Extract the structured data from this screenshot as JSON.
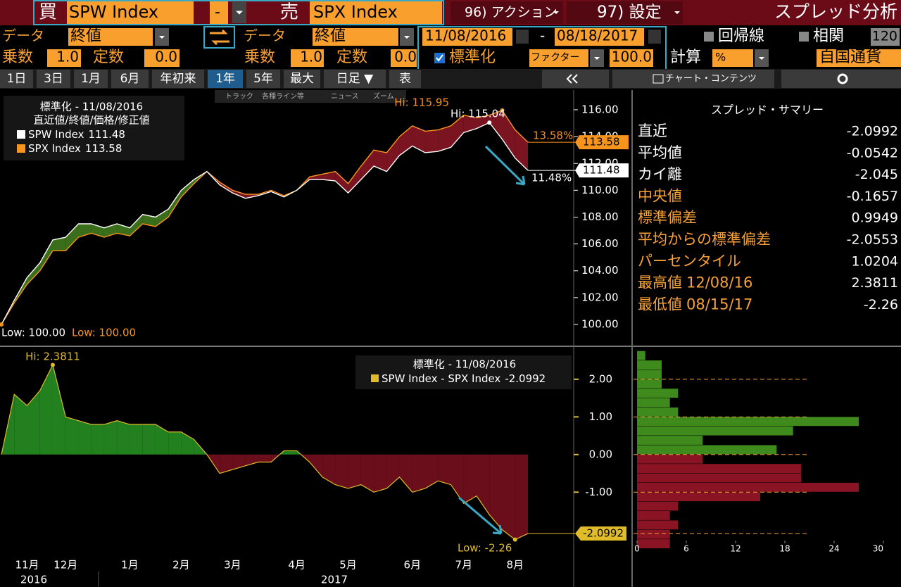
{
  "toolbar": {
    "buy_label": "買",
    "buy_ticker": "SPW Index",
    "dash": "-",
    "sell_label": "売",
    "sell_ticker": "SPX Index",
    "action_menu": "96) アクション",
    "settings_menu": "97) 設定",
    "page_title": "スプレッド分析",
    "buy_data_label": "データ",
    "buy_data_value": "終値",
    "sell_data_label": "データ",
    "sell_data_value": "終値",
    "start_date": "11/08/2016",
    "date_sep": "-",
    "end_date": "08/18/2017",
    "regression": "回帰線",
    "correlation": "相関",
    "correlation_window": "120",
    "buy_mult_label": "乗数",
    "buy_mult": "1.0",
    "buy_const_label": "定数",
    "buy_const": "0.0",
    "sell_mult_label": "乗数",
    "sell_mult": "1.0",
    "sell_const_label": "定数",
    "sell_const": "0.0",
    "normalize": "標準化",
    "factor_label": "ファクター",
    "factor": "100.0",
    "calc_label": "計算",
    "calc_value": "%",
    "currency": "自国通貨"
  },
  "range_buttons": [
    "1日",
    "3日",
    "1月",
    "6月",
    "年初来",
    "1年",
    "5年",
    "最大",
    "日足 ▼",
    "表"
  ],
  "chart_tools": [
    "トラック",
    "各種ライン等",
    "ニュース",
    "ズーム"
  ],
  "content_menu": "チャート・コンテンツ",
  "summary": {
    "title": "スプレッド・サマリー",
    "rows": [
      {
        "label": "直近",
        "value": -2.0992
      },
      {
        "label": "平均値",
        "value": -0.0542
      },
      {
        "label": "カイ離",
        "value": -2.045
      },
      {
        "label": "中央値",
        "value": -0.1657
      },
      {
        "label": "標準偏差",
        "value": 0.9949
      },
      {
        "label": "平均からの標準偏差",
        "value": -2.0553
      },
      {
        "label": "パーセンタイル",
        "value": 1.0204
      },
      {
        "label": "最高値",
        "date": "12/08/16",
        "value": 2.3811
      },
      {
        "label": "最低値",
        "date": "08/15/17",
        "value": -2.26
      }
    ]
  },
  "chart_data": [
    {
      "type": "line",
      "legend_title": "標準化 - 11/08/2016",
      "legend_subtitle": "直近値/終値/価格/修正値",
      "series": [
        {
          "name": "SPW Index",
          "color": "#ffffff",
          "values": [
            100,
            101.8,
            103.5,
            104.6,
            106.3,
            106.5,
            107.5,
            107.5,
            107.2,
            107.5,
            107.2,
            108.2,
            108.0,
            108.6,
            110.0,
            110.8,
            111.4,
            110.4,
            109.8,
            109.4,
            109.6,
            109.9,
            109.5,
            110.0,
            110.8,
            110.8,
            110.7,
            109.8,
            110.8,
            111.8,
            111.4,
            112.6,
            113.3,
            112.8,
            112.9,
            113.2,
            114.3,
            114.6,
            115.04,
            113.8,
            112.4,
            111.48
          ]
        },
        {
          "name": "SPX Index",
          "color": "#f7941d",
          "values": [
            100,
            101.6,
            103.0,
            104.0,
            105.5,
            105.5,
            106.5,
            106.8,
            106.5,
            106.8,
            106.6,
            107.5,
            107.3,
            108.0,
            109.5,
            110.5,
            111.4,
            110.6,
            110.0,
            109.7,
            109.7,
            110.0,
            109.6,
            110.0,
            111.0,
            111.2,
            111.4,
            110.5,
            111.8,
            113.0,
            112.8,
            114.0,
            114.8,
            114.4,
            114.5,
            114.8,
            115.6,
            115.4,
            115.6,
            115.95,
            114.5,
            113.58
          ]
        }
      ],
      "fill_colors": {
        "positive": "#3b6e1a",
        "negative": "#7a1420"
      },
      "ylim": [
        98.48,
        117.36
      ],
      "yticks": [
        {
          "value": 100,
          "label": "100.00"
        },
        {
          "value": 102,
          "label": "102.00"
        },
        {
          "value": 104,
          "label": "104.00"
        },
        {
          "value": 106,
          "label": "106.00"
        },
        {
          "value": 108,
          "label": "108.00"
        },
        {
          "value": 110,
          "label": "110.00"
        },
        {
          "value": 112,
          "label": "112.00"
        },
        {
          "value": 114,
          "label": "114.00"
        },
        {
          "value": 116,
          "label": "116.00"
        }
      ],
      "annotations": {
        "spx_high": "Hi: 115.95",
        "spw_high": "Hi: 115.04",
        "spw_low": "Low: 100.00",
        "spx_low": "Low: 100.00",
        "spx_change": "13.58%",
        "spw_change": "11.48%"
      }
    },
    {
      "type": "area",
      "legend_title": "標準化 - 11/08/2016",
      "categories": [
        null,
        null,
        "11月",
        null,
        null,
        "12月",
        null,
        null,
        null,
        null,
        "1月",
        null,
        null,
        null,
        "2月",
        null,
        null,
        null,
        "3月",
        null,
        null,
        null,
        null,
        "4月",
        null,
        null,
        null,
        "5月",
        null,
        null,
        null,
        null,
        "6月",
        null,
        null,
        null,
        "7月",
        null,
        null,
        null,
        "8月",
        null
      ],
      "years": [
        "2016",
        "2017"
      ],
      "series": [
        {
          "name": "SPW Index - SPX Index",
          "color": "#e0bc2a",
          "values": [
            0,
            1.6,
            1.3,
            1.7,
            2.3811,
            1.0,
            0.9,
            0.8,
            0.8,
            0.9,
            0.8,
            0.8,
            0.8,
            0.6,
            0.6,
            0.4,
            0.0,
            -0.5,
            -0.4,
            -0.3,
            -0.2,
            -0.2,
            0.1,
            0.1,
            -0.2,
            -0.6,
            -0.8,
            -0.9,
            -0.8,
            -1.0,
            -0.9,
            -0.6,
            -1.0,
            -0.9,
            -0.7,
            -0.8,
            -1.3,
            -1.1,
            -1.6,
            -2.0,
            -2.26,
            -2.0992
          ]
        }
      ],
      "fill_colors": {
        "positive": "#23801f",
        "negative": "#6b0e1c"
      },
      "ylim": [
        -2.79,
        2.82
      ],
      "yticks": [
        {
          "value": 2,
          "label": "2.00"
        },
        {
          "value": 1,
          "label": "1.00"
        },
        {
          "value": 0,
          "label": "0.00"
        },
        {
          "value": -1,
          "label": "-1.00"
        }
      ],
      "annotations": {
        "high": "Hi: 2.3811",
        "low": "Low: -2.26"
      }
    },
    {
      "type": "histogram",
      "bins": [
        -2.5,
        -2.25,
        -2,
        -1.75,
        -1.5,
        -1.25,
        -1,
        -0.75,
        -0.5,
        -0.25,
        0,
        0.25,
        0.5,
        0.75,
        1,
        1.25,
        1.5,
        1.75,
        2,
        2.25,
        2.5,
        2.75
      ],
      "counts": [
        4,
        4,
        5,
        4,
        5,
        15,
        27,
        20,
        20,
        8,
        17,
        8,
        19,
        27,
        5,
        4,
        5,
        3,
        3,
        3,
        1
      ],
      "colors": {
        "positive": "#3f8a1c",
        "negative": "#8a1424"
      },
      "xlim": [
        0,
        30
      ],
      "xticks": [
        0,
        6,
        12,
        18,
        24,
        30
      ]
    }
  ]
}
